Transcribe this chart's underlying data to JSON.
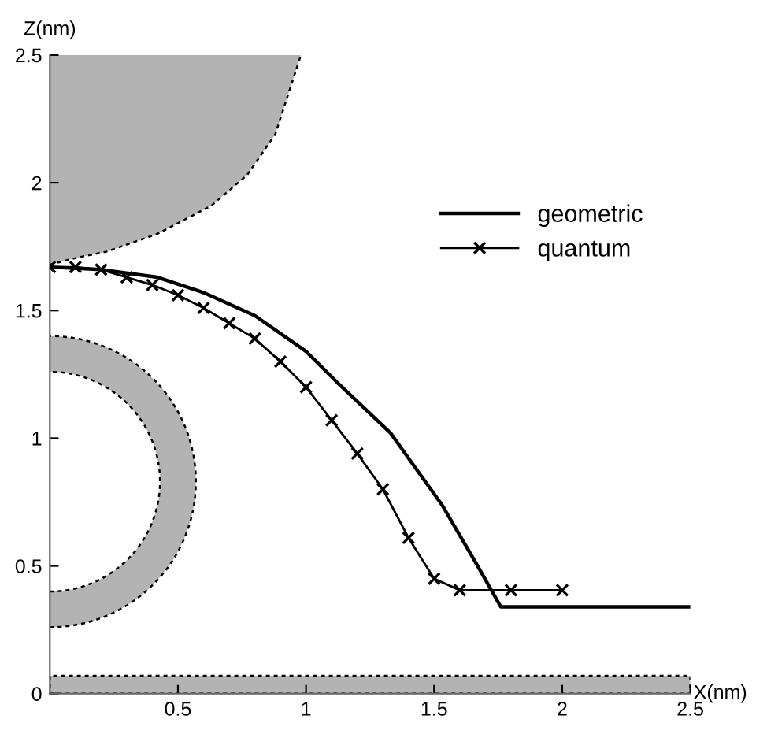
{
  "chart_data": {
    "type": "line",
    "xlabel": "X(nm)",
    "ylabel": "Z(nm)",
    "xlim": [
      0,
      2.5
    ],
    "ylim": [
      0,
      2.5
    ],
    "xticks": [
      0.5,
      1,
      1.5,
      2,
      2.5
    ],
    "yticks": [
      0,
      0.5,
      1,
      1.5,
      2,
      2.5
    ],
    "grid": false,
    "legend": "top right",
    "bands": [
      {
        "axis": "y",
        "from": 0,
        "to": 0.07,
        "color": "#b3b3b3"
      }
    ],
    "series": [
      {
        "name": "geometric",
        "color": "#000000",
        "marker": "none",
        "line_style": "solid",
        "x": [
          0,
          0.2,
          0.42,
          0.6,
          0.8,
          1.0,
          1.12,
          1.33,
          1.53,
          1.67,
          1.76,
          2.5
        ],
        "values": [
          1.67,
          1.66,
          1.63,
          1.57,
          1.48,
          1.34,
          1.22,
          1.02,
          0.74,
          0.5,
          0.34,
          0.34
        ]
      },
      {
        "name": "quantum",
        "color": "#000000",
        "marker": "cross",
        "line_style": "solid",
        "x": [
          0,
          0.1,
          0.2,
          0.3,
          0.4,
          0.5,
          0.6,
          0.7,
          0.8,
          0.9,
          1.0,
          1.1,
          1.2,
          1.3,
          1.4,
          1.5,
          1.6,
          1.8,
          2.0
        ],
        "values": [
          1.67,
          1.67,
          1.66,
          1.63,
          1.6,
          1.56,
          1.51,
          1.45,
          1.39,
          1.3,
          1.2,
          1.07,
          0.94,
          0.8,
          0.61,
          0.45,
          0.405,
          0.405,
          0.405
        ]
      }
    ]
  }
}
